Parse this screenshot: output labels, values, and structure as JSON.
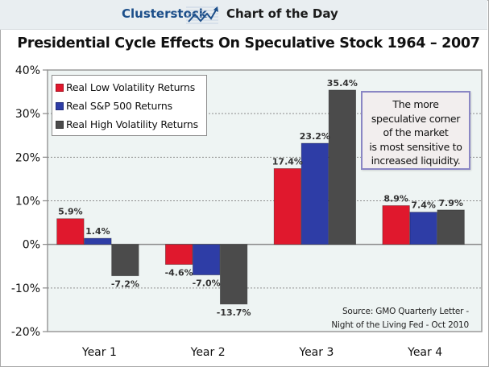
{
  "banner": {
    "brand": "Clusterstock",
    "logo_icon": "rising-chart-icon",
    "label": "Chart of the Day"
  },
  "chart_data": {
    "type": "bar",
    "title": "Presidential Cycle Effects On Speculative Stock 1964 – 2007",
    "xlabel": "",
    "ylabel": "",
    "categories": [
      "Year 1",
      "Year 2",
      "Year 3",
      "Year 4"
    ],
    "series": [
      {
        "name": "Real Low Volatility Returns",
        "color": "#e0182d",
        "values": [
          5.9,
          -4.6,
          17.4,
          8.9
        ],
        "labels": [
          "5.9%",
          "-4.6%",
          "17.4%",
          "8.9%"
        ]
      },
      {
        "name": "Real S&P 500 Returns",
        "color": "#2e3da6",
        "values": [
          1.4,
          -7.0,
          23.2,
          7.4
        ],
        "labels": [
          "1.4%",
          "-7.0%",
          "23.2%",
          "7.4%"
        ]
      },
      {
        "name": "Real High Volatility Returns",
        "color": "#4b4b4b",
        "values": [
          -7.2,
          -13.7,
          35.4,
          7.9
        ],
        "labels": [
          "-7.2%",
          "-13.7%",
          "35.4%",
          "7.9%"
        ]
      }
    ],
    "ylim": [
      -20,
      40
    ],
    "yticks": [
      40,
      30,
      20,
      10,
      0,
      -10,
      -20
    ],
    "ytick_labels": [
      "40%",
      "30%",
      "20%",
      "10%",
      "0%",
      "-10%",
      "-20%"
    ],
    "grid": "horizontal-dashed",
    "legend_position": "top-left",
    "annotation": [
      "The more",
      "speculative corner",
      "of the market",
      "is most sensitive to",
      "increased liquidity."
    ],
    "source": [
      "Source: GMO Quarterly Letter -",
      "Night of the Living Fed - Oct 2010"
    ]
  }
}
